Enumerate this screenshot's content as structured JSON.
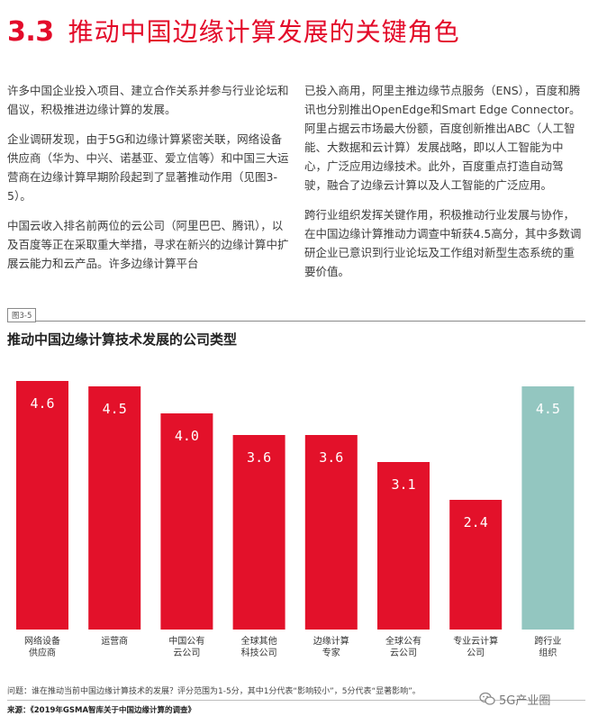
{
  "heading": {
    "number": "3.3",
    "title": "推动中国边缘计算发展的关键角色"
  },
  "body": {
    "left": [
      "许多中国企业投入项目、建立合作关系并参与行业论坛和倡议，积极推进边缘计算的发展。",
      "企业调研发现，由于5G和边缘计算紧密关联，网络设备供应商（华为、中兴、诺基亚、爱立信等）和中国三大运营商在边缘计算早期阶段起到了显著推动作用（见图3-5）。",
      "中国云收入排名前两位的云公司（阿里巴巴、腾讯），以及百度等正在采取重大举措，寻求在新兴的边缘计算中扩展云能力和云产品。许多边缘计算平台"
    ],
    "right": [
      "已投入商用，阿里主推边缘节点服务（ENS），百度和腾讯也分别推出OpenEdge和Smart Edge Connector。阿里占据云市场最大份额，百度创新推出ABC（人工智能、大数据和云计算）发展战略，即以人工智能为中心，广泛应用边缘技术。此外，百度重点打造自动驾驶，融合了边缘云计算以及人工智能的广泛应用。",
      "跨行业组织发挥关键作用，积极推动行业发展与协作，在中国边缘计算推动力调查中斩获4.5高分，其中多数调研企业已意识到行业论坛及工作组对新型生态系统的重要价值。"
    ]
  },
  "figure": {
    "label": "图3-5",
    "title": "推动中国边缘计算技术发展的公司类型"
  },
  "chart_data": {
    "type": "bar",
    "title": "推动中国边缘计算技术发展的公司类型",
    "categories": [
      [
        "网络设备",
        "供应商"
      ],
      [
        "运营商"
      ],
      [
        "中国公有",
        "云公司"
      ],
      [
        "全球其他",
        "科技公司"
      ],
      [
        "边缘计算",
        "专家"
      ],
      [
        "全球公有",
        "云公司"
      ],
      [
        "专业云计算",
        "公司"
      ],
      [
        "跨行业",
        "组织"
      ]
    ],
    "values": [
      4.6,
      4.5,
      4.0,
      3.6,
      3.6,
      3.1,
      2.4,
      4.5
    ],
    "value_labels": [
      "4.6",
      "4.5",
      "4.0",
      "3.6",
      "3.6",
      "3.1",
      "2.4",
      "4.5"
    ],
    "colors": [
      "#e3112a",
      "#e3112a",
      "#e3112a",
      "#e3112a",
      "#e3112a",
      "#e3112a",
      "#e3112a",
      "#93c6c0"
    ],
    "ylim": [
      0,
      5
    ],
    "xlabel": "",
    "ylabel": "",
    "grid": false,
    "legend": "none"
  },
  "note": "问题：谁在推动当前中国边缘计算技术的发展？评分范围为1-5分，其中1分代表“影响较小”，5分代表“显著影响”。",
  "source": "来源：《2019年GSMA智库关于中国边缘计算的调查》",
  "watermark": {
    "text": "5G产业圈",
    "icon": "wechat-icon"
  }
}
